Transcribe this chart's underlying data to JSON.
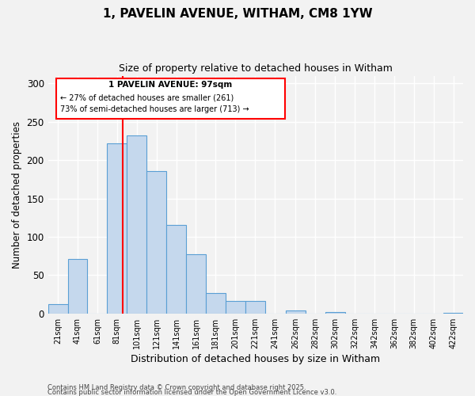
{
  "title": "1, PAVELIN AVENUE, WITHAM, CM8 1YW",
  "subtitle": "Size of property relative to detached houses in Witham",
  "xlabel": "Distribution of detached houses by size in Witham",
  "ylabel": "Number of detached properties",
  "bar_color": "#c5d8ed",
  "bar_edge_color": "#5a9fd4",
  "background_color": "#f2f2f2",
  "grid_color": "#ffffff",
  "bin_labels": [
    "21sqm",
    "41sqm",
    "61sqm",
    "81sqm",
    "101sqm",
    "121sqm",
    "141sqm",
    "161sqm",
    "181sqm",
    "201sqm",
    "221sqm",
    "241sqm",
    "262sqm",
    "282sqm",
    "302sqm",
    "322sqm",
    "342sqm",
    "362sqm",
    "382sqm",
    "402sqm",
    "422sqm"
  ],
  "bin_left_edges": [
    21,
    41,
    61,
    81,
    101,
    121,
    141,
    161,
    181,
    201,
    221,
    241,
    262,
    282,
    302,
    322,
    342,
    362,
    382,
    402,
    422
  ],
  "bin_counts": [
    12,
    71,
    0,
    222,
    232,
    186,
    115,
    77,
    27,
    16,
    16,
    0,
    4,
    0,
    2,
    0,
    0,
    0,
    0,
    0,
    1
  ],
  "bin_width": 20,
  "marker_x": 97,
  "marker_label": "1 PAVELIN AVENUE: 97sqm",
  "annotation_line1": "← 27% of detached houses are smaller (261)",
  "annotation_line2": "73% of semi-detached houses are larger (713) →",
  "ylim": [
    0,
    310
  ],
  "yticks": [
    0,
    50,
    100,
    150,
    200,
    250,
    300
  ],
  "xlim_left": 21,
  "xlim_right": 422,
  "footnote1": "Contains HM Land Registry data © Crown copyright and database right 2025.",
  "footnote2": "Contains public sector information licensed under the Open Government Licence v3.0."
}
